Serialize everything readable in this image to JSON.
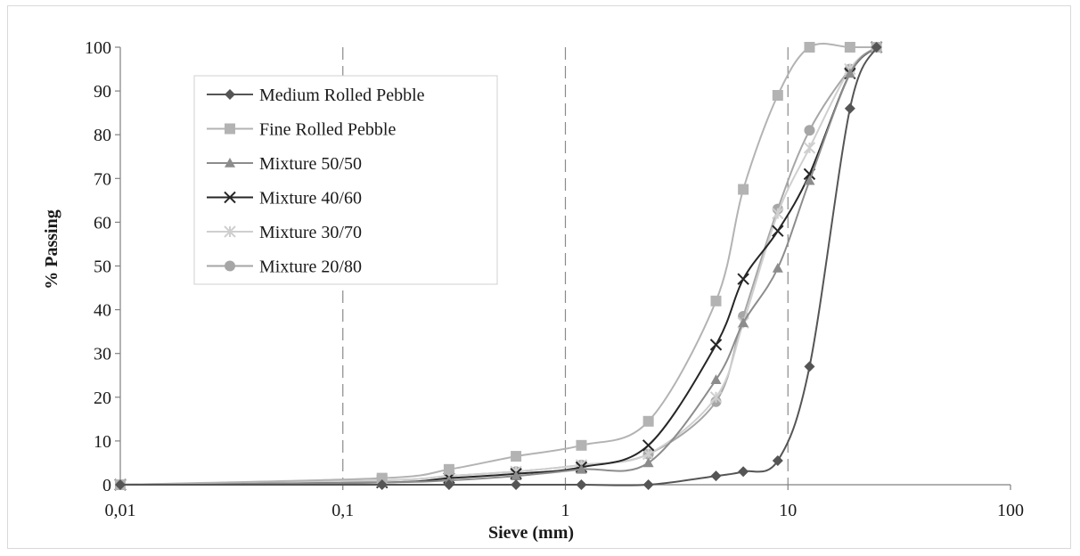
{
  "chart_data": {
    "type": "line",
    "xlabel": "Sieve (mm)",
    "ylabel": "% Passing",
    "xscale": "log",
    "xlim": [
      0.01,
      100
    ],
    "ylim": [
      0,
      100
    ],
    "xticks": [
      0.01,
      0.1,
      1,
      10,
      100
    ],
    "xtick_labels": [
      "0,01",
      "0,1",
      "1",
      "10",
      "100"
    ],
    "yticks": [
      0,
      10,
      20,
      30,
      40,
      50,
      60,
      70,
      80,
      90,
      100
    ],
    "ytick_labels": [
      "0",
      "10",
      "20",
      "30",
      "40",
      "50",
      "60",
      "70",
      "80",
      "90",
      "100"
    ],
    "vertical_gridlines": "dashed at 0.1, 1, 10",
    "legend_position": "top-left",
    "series": [
      {
        "name": "Medium Rolled Pebble",
        "color": "#555555",
        "marker": "diamond",
        "x": [
          0.01,
          0.15,
          0.3,
          0.6,
          1.18,
          2.36,
          4.75,
          6.3,
          9.0,
          12.5,
          19,
          25
        ],
        "y": [
          0,
          0,
          0,
          0,
          0,
          0,
          2,
          3,
          5.5,
          27,
          86,
          100
        ]
      },
      {
        "name": "Fine Rolled Pebble",
        "color": "#b3b3b3",
        "marker": "square",
        "x": [
          0.01,
          0.15,
          0.3,
          0.6,
          1.18,
          2.36,
          4.75,
          6.3,
          9.0,
          12.5,
          19,
          25
        ],
        "y": [
          0,
          1.5,
          3.5,
          6.5,
          9,
          14.5,
          42,
          67.5,
          89,
          100,
          100,
          100
        ]
      },
      {
        "name": "Mixture 50/50",
        "color": "#8c8c8c",
        "marker": "triangle",
        "x": [
          0.01,
          0.15,
          0.3,
          0.6,
          1.18,
          2.36,
          4.75,
          6.3,
          9.0,
          12.5,
          19,
          25
        ],
        "y": [
          0,
          0.5,
          1,
          2,
          3.5,
          5,
          24,
          37,
          49.5,
          69.5,
          94,
          100
        ]
      },
      {
        "name": "Mixture 40/60",
        "color": "#262626",
        "marker": "x",
        "x": [
          0.01,
          0.15,
          0.3,
          0.6,
          1.18,
          2.36,
          4.75,
          6.3,
          9.0,
          12.5,
          19,
          25
        ],
        "y": [
          0,
          0.5,
          1.5,
          2.5,
          4,
          9,
          32,
          47,
          58,
          71,
          94,
          100
        ]
      },
      {
        "name": "Mixture 30/70",
        "color": "#cfcfcf",
        "marker": "star",
        "x": [
          0.01,
          0.15,
          0.3,
          0.6,
          1.18,
          2.36,
          4.75,
          6.3,
          9.0,
          12.5,
          19,
          25
        ],
        "y": [
          0,
          1,
          2,
          3,
          4.5,
          7,
          20,
          37,
          62,
          77,
          95,
          100
        ]
      },
      {
        "name": "Mixture 20/80",
        "color": "#a6a6a6",
        "marker": "circle",
        "x": [
          0.01,
          0.15,
          0.3,
          0.6,
          1.18,
          2.36,
          4.75,
          6.3,
          9.0,
          12.5,
          19,
          25
        ],
        "y": [
          0,
          1,
          2,
          3,
          4.5,
          7,
          19,
          38.5,
          63,
          81,
          95,
          100
        ]
      }
    ]
  }
}
